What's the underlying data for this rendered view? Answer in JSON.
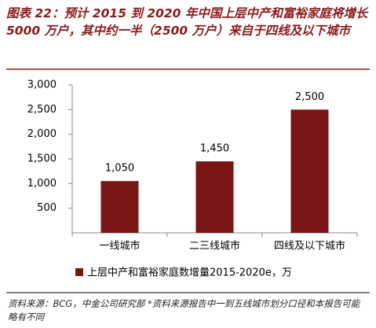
{
  "chart_data": {
    "type": "bar",
    "title": "图表 22：预计 2015 到 2020 年中国上层中产和富裕家庭将增长 5000 万户，其中约一半（2500 万户）来自于四线及以下城市",
    "categories": [
      "一线城市",
      "二三线城市",
      "四线及以下城市"
    ],
    "series": [
      {
        "name": "上层中产和富裕家庭数增量2015-2020e，万",
        "color": "#7a1616",
        "values": [
          1050,
          1450,
          2500
        ],
        "value_labels": [
          "1,050",
          "1,450",
          "2,500"
        ]
      }
    ],
    "ylim": [
      0,
      3000
    ],
    "yticks": [
      {
        "value": 500,
        "label": "500"
      },
      {
        "value": 1000,
        "label": "1,000"
      },
      {
        "value": 1500,
        "label": "1,500"
      },
      {
        "value": 2000,
        "label": "2,000"
      },
      {
        "value": 2500,
        "label": "2,500"
      },
      {
        "value": 3000,
        "label": "3,000"
      }
    ],
    "source": "资料来源：BCG，中金公司研究部 *资料来源报告中一到五线城市划分口径和本报告可能略有不同"
  }
}
